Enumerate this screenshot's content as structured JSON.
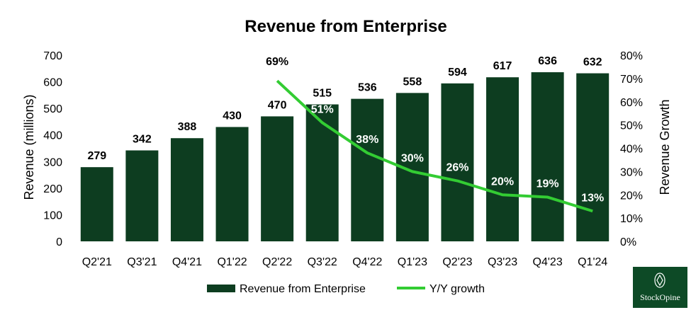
{
  "chart_data": {
    "type": "bar",
    "title": "Revenue from Enterprise",
    "categories": [
      "Q2'21",
      "Q3'21",
      "Q4'21",
      "Q1'22",
      "Q2'22",
      "Q3'22",
      "Q4'22",
      "Q1'23",
      "Q2'23",
      "Q3'23",
      "Q4'23",
      "Q1'24"
    ],
    "series": [
      {
        "name": "Revenue from Enterprise",
        "type": "bar",
        "axis": "left",
        "color": "#0d3d20",
        "values": [
          279,
          342,
          388,
          430,
          470,
          515,
          536,
          558,
          594,
          617,
          636,
          632
        ],
        "labels": [
          "279",
          "342",
          "388",
          "430",
          "470",
          "515",
          "536",
          "558",
          "594",
          "617",
          "636",
          "632"
        ]
      },
      {
        "name": "Y/Y growth",
        "type": "line",
        "axis": "right",
        "color": "#33cc33",
        "values": [
          null,
          null,
          null,
          null,
          69,
          51,
          38,
          30,
          26,
          20,
          19,
          13
        ],
        "labels": [
          "",
          "",
          "",
          "",
          "69%",
          "51%",
          "38%",
          "30%",
          "26%",
          "20%",
          "19%",
          "13%"
        ]
      }
    ],
    "ylabel": "Revenue (millions)",
    "y2label": "Revenue Growth",
    "ylim": [
      0,
      700
    ],
    "yticks": [
      "0",
      "100",
      "200",
      "300",
      "400",
      "500",
      "600",
      "700"
    ],
    "y2lim": [
      0,
      80
    ],
    "y2ticks": [
      "0%",
      "10%",
      "20%",
      "30%",
      "40%",
      "50%",
      "60%",
      "70%",
      "80%"
    ],
    "grid": false,
    "legend_position": "bottom"
  },
  "branding": {
    "logo_text": "StockOpine",
    "logo_color": "#0d4a26"
  }
}
